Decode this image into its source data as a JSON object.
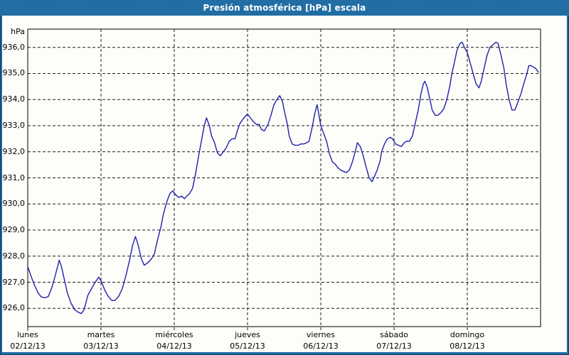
{
  "window": {
    "title": "Presión atmosférica [hPa] escala"
  },
  "colors": {
    "titlebar": "#1E6CA3",
    "frame_border": "#1E6CA3",
    "outer_outline": "#0d3f63",
    "background": "#FDFDFA",
    "line": "#2121AA",
    "grid": "#1a1a1a",
    "plot_border": "#000000",
    "title_text": "#ffffff",
    "label_text": "#000000"
  },
  "chart_data": {
    "type": "line",
    "title": "Presión atmosférica [hPa] escala",
    "ylabel": "hPa",
    "unit_label": "hPa",
    "grid": "dashed",
    "legend": "none",
    "ylim": [
      925.3,
      936.7
    ],
    "xlim_days": [
      0,
      7
    ],
    "y_ticks": [
      {
        "value": 936.0,
        "label": "936,0"
      },
      {
        "value": 935.0,
        "label": "935,0"
      },
      {
        "value": 934.0,
        "label": "934,0"
      },
      {
        "value": 933.0,
        "label": "933,0"
      },
      {
        "value": 932.0,
        "label": "932,0"
      },
      {
        "value": 931.0,
        "label": "931,0"
      },
      {
        "value": 930.0,
        "label": "930,0"
      },
      {
        "value": 929.0,
        "label": "929,0"
      },
      {
        "value": 928.0,
        "label": "928,0"
      },
      {
        "value": 927.0,
        "label": "927,0"
      },
      {
        "value": 926.0,
        "label": "926,0"
      }
    ],
    "x_ticks": [
      {
        "index": 0,
        "day": "lunes",
        "date": "02/12/13"
      },
      {
        "index": 1,
        "day": "martes",
        "date": "03/12/13"
      },
      {
        "index": 2,
        "day": "miércoles",
        "date": "04/12/13"
      },
      {
        "index": 3,
        "day": "jueves",
        "date": "05/12/13"
      },
      {
        "index": 4,
        "day": "viernes",
        "date": "06/12/13"
      },
      {
        "index": 5,
        "day": "sábado",
        "date": "07/12/13"
      },
      {
        "index": 6,
        "day": "domingo",
        "date": "08/12/13"
      }
    ],
    "series": [
      {
        "name": "Presión atmosférica [hPa]",
        "color": "#2121AA",
        "points": [
          [
            0.0,
            927.6
          ],
          [
            0.05,
            927.2
          ],
          [
            0.09,
            926.9
          ],
          [
            0.14,
            926.6
          ],
          [
            0.18,
            926.45
          ],
          [
            0.23,
            926.4
          ],
          [
            0.28,
            926.45
          ],
          [
            0.33,
            926.8
          ],
          [
            0.38,
            927.3
          ],
          [
            0.43,
            927.85
          ],
          [
            0.46,
            927.6
          ],
          [
            0.5,
            927.1
          ],
          [
            0.54,
            926.6
          ],
          [
            0.59,
            926.2
          ],
          [
            0.64,
            925.95
          ],
          [
            0.69,
            925.85
          ],
          [
            0.73,
            925.8
          ],
          [
            0.77,
            925.95
          ],
          [
            0.82,
            926.5
          ],
          [
            0.86,
            926.7
          ],
          [
            0.91,
            926.95
          ],
          [
            0.97,
            927.2
          ],
          [
            1.01,
            927.0
          ],
          [
            1.05,
            926.7
          ],
          [
            1.1,
            926.45
          ],
          [
            1.15,
            926.3
          ],
          [
            1.19,
            926.3
          ],
          [
            1.24,
            926.45
          ],
          [
            1.29,
            926.75
          ],
          [
            1.34,
            927.25
          ],
          [
            1.39,
            927.85
          ],
          [
            1.43,
            928.4
          ],
          [
            1.47,
            928.75
          ],
          [
            1.5,
            928.5
          ],
          [
            1.55,
            927.9
          ],
          [
            1.59,
            927.65
          ],
          [
            1.64,
            927.75
          ],
          [
            1.69,
            927.9
          ],
          [
            1.73,
            928.1
          ],
          [
            1.77,
            928.6
          ],
          [
            1.82,
            929.15
          ],
          [
            1.85,
            929.6
          ],
          [
            1.9,
            930.1
          ],
          [
            1.94,
            930.4
          ],
          [
            1.98,
            930.5
          ],
          [
            2.02,
            930.35
          ],
          [
            2.06,
            930.25
          ],
          [
            2.1,
            930.3
          ],
          [
            2.14,
            930.2
          ],
          [
            2.17,
            930.3
          ],
          [
            2.21,
            930.4
          ],
          [
            2.25,
            930.6
          ],
          [
            2.29,
            931.15
          ],
          [
            2.33,
            931.8
          ],
          [
            2.37,
            932.4
          ],
          [
            2.41,
            933.0
          ],
          [
            2.44,
            933.3
          ],
          [
            2.48,
            933.0
          ],
          [
            2.51,
            932.6
          ],
          [
            2.55,
            932.35
          ],
          [
            2.59,
            931.95
          ],
          [
            2.63,
            931.85
          ],
          [
            2.67,
            932.0
          ],
          [
            2.71,
            932.15
          ],
          [
            2.75,
            932.4
          ],
          [
            2.79,
            932.5
          ],
          [
            2.83,
            932.5
          ],
          [
            2.86,
            932.8
          ],
          [
            2.9,
            933.1
          ],
          [
            2.95,
            933.3
          ],
          [
            3.0,
            933.45
          ],
          [
            3.04,
            933.3
          ],
          [
            3.08,
            933.15
          ],
          [
            3.12,
            933.05
          ],
          [
            3.16,
            933.05
          ],
          [
            3.19,
            932.85
          ],
          [
            3.23,
            932.8
          ],
          [
            3.28,
            933.05
          ],
          [
            3.32,
            933.4
          ],
          [
            3.36,
            933.8
          ],
          [
            3.4,
            934.0
          ],
          [
            3.44,
            934.15
          ],
          [
            3.48,
            933.9
          ],
          [
            3.5,
            933.6
          ],
          [
            3.54,
            933.1
          ],
          [
            3.57,
            932.6
          ],
          [
            3.61,
            932.3
          ],
          [
            3.65,
            932.25
          ],
          [
            3.69,
            932.25
          ],
          [
            3.73,
            932.3
          ],
          [
            3.77,
            932.3
          ],
          [
            3.81,
            932.35
          ],
          [
            3.84,
            932.4
          ],
          [
            3.88,
            932.9
          ],
          [
            3.92,
            933.5
          ],
          [
            3.95,
            933.8
          ],
          [
            4.0,
            933.0
          ],
          [
            4.04,
            932.7
          ],
          [
            4.08,
            932.4
          ],
          [
            4.12,
            931.9
          ],
          [
            4.16,
            931.6
          ],
          [
            4.19,
            931.55
          ],
          [
            4.23,
            931.4
          ],
          [
            4.27,
            931.3
          ],
          [
            4.31,
            931.25
          ],
          [
            4.35,
            931.2
          ],
          [
            4.39,
            931.3
          ],
          [
            4.43,
            931.6
          ],
          [
            4.47,
            932.0
          ],
          [
            4.5,
            932.35
          ],
          [
            4.54,
            932.2
          ],
          [
            4.58,
            931.85
          ],
          [
            4.62,
            931.4
          ],
          [
            4.66,
            931.0
          ],
          [
            4.7,
            930.85
          ],
          [
            4.74,
            931.1
          ],
          [
            4.77,
            931.3
          ],
          [
            4.81,
            931.65
          ],
          [
            4.83,
            932.0
          ],
          [
            4.87,
            932.3
          ],
          [
            4.91,
            932.5
          ],
          [
            4.95,
            932.55
          ],
          [
            4.98,
            932.5
          ],
          [
            5.02,
            932.3
          ],
          [
            5.06,
            932.25
          ],
          [
            5.1,
            932.2
          ],
          [
            5.14,
            932.35
          ],
          [
            5.17,
            932.4
          ],
          [
            5.21,
            932.4
          ],
          [
            5.25,
            932.6
          ],
          [
            5.29,
            933.1
          ],
          [
            5.33,
            933.6
          ],
          [
            5.37,
            934.25
          ],
          [
            5.4,
            934.6
          ],
          [
            5.42,
            934.7
          ],
          [
            5.45,
            934.5
          ],
          [
            5.49,
            934.0
          ],
          [
            5.52,
            933.6
          ],
          [
            5.56,
            933.4
          ],
          [
            5.6,
            933.4
          ],
          [
            5.64,
            933.5
          ],
          [
            5.68,
            933.65
          ],
          [
            5.72,
            934.0
          ],
          [
            5.76,
            934.5
          ],
          [
            5.79,
            935.0
          ],
          [
            5.83,
            935.5
          ],
          [
            5.86,
            935.9
          ],
          [
            5.9,
            936.15
          ],
          [
            5.93,
            936.2
          ],
          [
            5.96,
            936.0
          ],
          [
            6.0,
            935.8
          ],
          [
            6.04,
            935.4
          ],
          [
            6.08,
            935.0
          ],
          [
            6.12,
            934.6
          ],
          [
            6.16,
            934.45
          ],
          [
            6.19,
            934.7
          ],
          [
            6.23,
            935.2
          ],
          [
            6.27,
            935.7
          ],
          [
            6.31,
            936.0
          ],
          [
            6.35,
            936.1
          ],
          [
            6.39,
            936.2
          ],
          [
            6.42,
            936.15
          ],
          [
            6.46,
            935.7
          ],
          [
            6.5,
            935.2
          ],
          [
            6.53,
            934.6
          ],
          [
            6.57,
            934.0
          ],
          [
            6.61,
            933.6
          ],
          [
            6.65,
            933.6
          ],
          [
            6.69,
            933.9
          ],
          [
            6.73,
            934.2
          ],
          [
            6.77,
            934.6
          ],
          [
            6.81,
            934.95
          ],
          [
            6.84,
            935.3
          ],
          [
            6.87,
            935.3
          ],
          [
            6.9,
            935.25
          ],
          [
            6.93,
            935.2
          ],
          [
            6.97,
            935.05
          ]
        ]
      }
    ]
  }
}
